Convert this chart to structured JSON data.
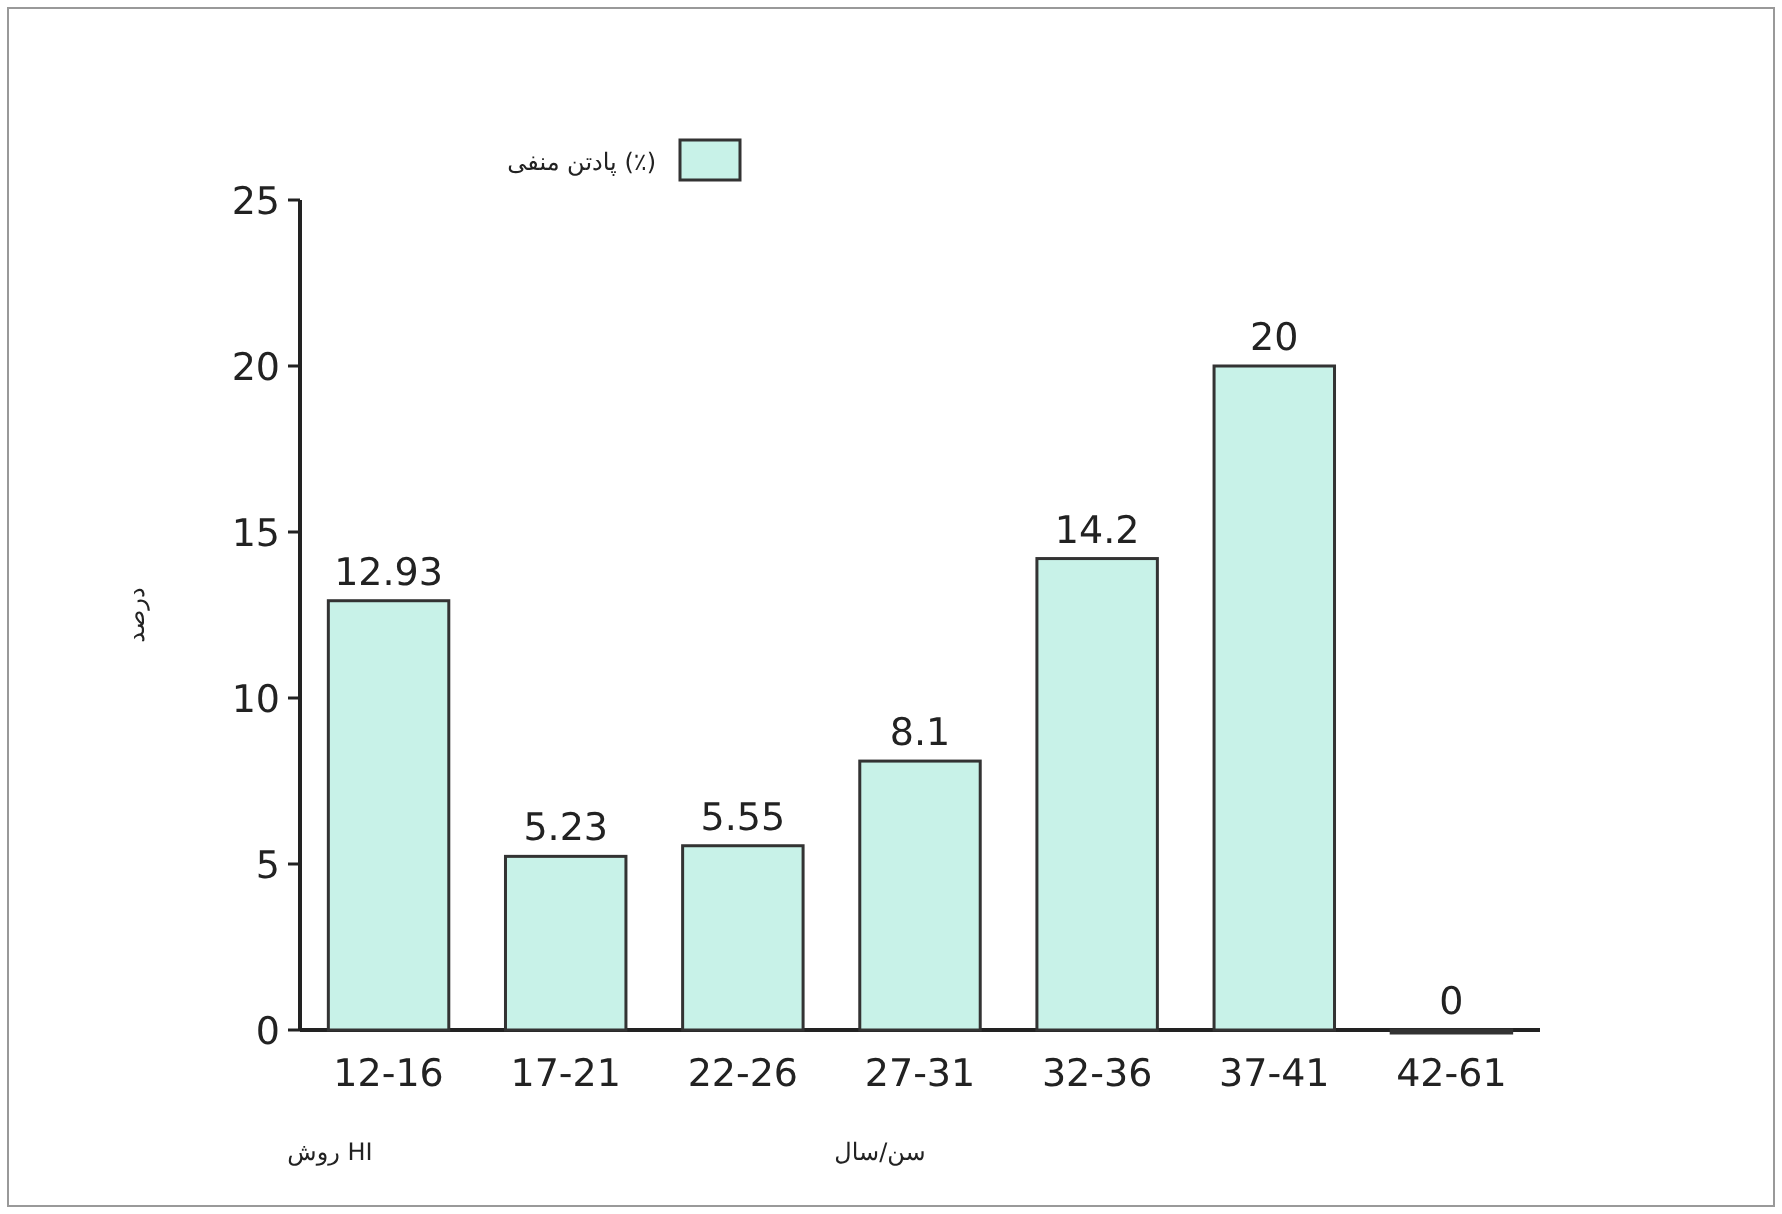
{
  "chart_data": {
    "type": "bar",
    "categories": [
      "12-16",
      "17-21",
      "22-26",
      "27-31",
      "32-36",
      "37-41",
      "42-61"
    ],
    "series": [
      {
        "name": "پادتن منفی (٪)",
        "color": "#c8f2e8",
        "values": [
          12.93,
          5.23,
          5.55,
          8.1,
          14.2,
          20,
          0
        ]
      }
    ],
    "ylim": [
      0,
      25
    ],
    "yticks": [
      0,
      5,
      10,
      15,
      20,
      25
    ],
    "ylabel": "درصد",
    "xlabel": "سن/سال",
    "annotations": [
      "روش HI"
    ],
    "data_labels": true,
    "legend": "top left",
    "grid": false
  }
}
